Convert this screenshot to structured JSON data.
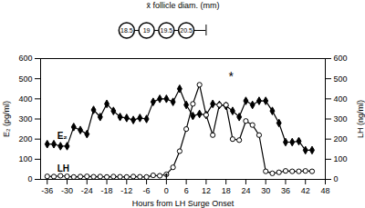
{
  "chart_data": {
    "type": "line",
    "x_label": "Hours from LH Surge Onset",
    "y_label": "E₂ (pg/ml)",
    "y2_label": "LH (ng/ml)",
    "xlim": [
      -38,
      48
    ],
    "xticks": [
      -36,
      -30,
      -24,
      -18,
      -12,
      -6,
      0,
      6,
      12,
      18,
      24,
      30,
      36,
      42,
      48
    ],
    "ylim": [
      0,
      600
    ],
    "yticks": [
      0,
      100,
      200,
      300,
      400,
      500,
      600
    ],
    "y2lim": [
      0,
      600
    ],
    "y2ticks": [
      0,
      100,
      200,
      300,
      400,
      500,
      600
    ],
    "x": [
      -36,
      -34,
      -32,
      -30,
      -28,
      -26,
      -24,
      -22,
      -20,
      -18,
      -16,
      -14,
      -12,
      -10,
      -8,
      -6,
      -4,
      -2,
      0,
      2,
      4,
      6,
      8,
      10,
      12,
      14,
      16,
      18,
      20,
      22,
      24,
      26,
      28,
      30,
      32,
      34,
      36,
      38,
      40,
      42,
      44
    ],
    "series": [
      {
        "name": "E₂",
        "color": "#000000",
        "marker": "diamond",
        "label_at": {
          "x": -33,
          "y": 215
        },
        "values": [
          175,
          175,
          165,
          165,
          260,
          245,
          225,
          345,
          310,
          375,
          340,
          310,
          305,
          295,
          305,
          300,
          385,
          400,
          400,
          385,
          450,
          370,
          315,
          325,
          320,
          375,
          370,
          365,
          340,
          310,
          390,
          370,
          390,
          390,
          340,
          280,
          185,
          185,
          190,
          145,
          145
        ]
      },
      {
        "name": "LH",
        "color": "#000000",
        "marker": "open_circle",
        "axis": "y2",
        "label_at": {
          "x": -33,
          "y": 55
        },
        "values": [
          15,
          14,
          18,
          15,
          12,
          14,
          15,
          13,
          14,
          12,
          14,
          13,
          12,
          14,
          13,
          12,
          20,
          18,
          25,
          60,
          140,
          250,
          375,
          470,
          320,
          220,
          370,
          370,
          200,
          195,
          290,
          270,
          220,
          40,
          30,
          35,
          42,
          40,
          40,
          42,
          40
        ]
      }
    ],
    "annotations": [
      {
        "text": "*",
        "x": 19.5,
        "y": 490,
        "axis": "y2"
      }
    ],
    "arrows": [
      {
        "x1": 0,
        "y1": 5,
        "x2": 0,
        "y2": 28
      }
    ],
    "follicle_diameter": {
      "title": "x̄ follicle diam. (mm)",
      "x": [
        -12,
        -6,
        0,
        6
      ],
      "values": [
        18.5,
        19,
        19.5,
        20.5
      ],
      "line_end": 12
    }
  }
}
